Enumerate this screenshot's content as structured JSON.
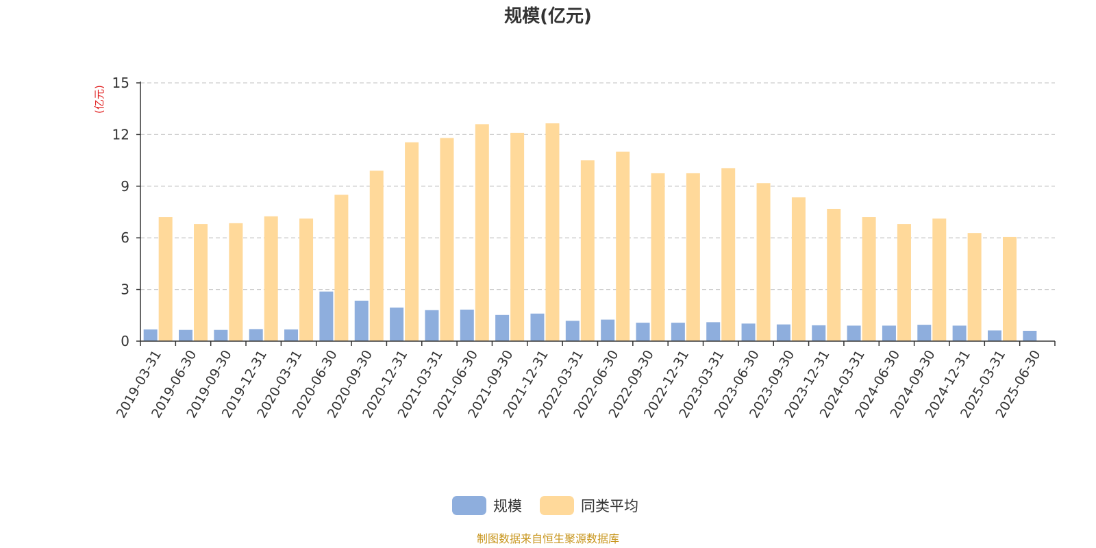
{
  "chart_data": {
    "type": "bar",
    "title": "规模(亿元)",
    "ylabel": "(亿元)",
    "xlabel": "",
    "ylim": [
      0,
      15
    ],
    "yticks": [
      0,
      3,
      6,
      9,
      12,
      15
    ],
    "grid": true,
    "legend_position": "bottom",
    "categories": [
      "2019-03-31",
      "2019-06-30",
      "2019-09-30",
      "2019-12-31",
      "2020-03-31",
      "2020-06-30",
      "2020-09-30",
      "2020-12-31",
      "2021-03-31",
      "2021-06-30",
      "2021-09-30",
      "2021-12-31",
      "2022-03-31",
      "2022-06-30",
      "2022-09-30",
      "2022-12-31",
      "2023-03-31",
      "2023-06-30",
      "2023-09-30",
      "2023-12-31",
      "2024-03-31",
      "2024-06-30",
      "2024-09-30",
      "2024-12-31",
      "2025-03-31",
      "2025-06-30"
    ],
    "series": [
      {
        "name": "规模",
        "color": "#8eaedd",
        "values": [
          0.68,
          0.65,
          0.65,
          0.7,
          0.68,
          2.88,
          2.35,
          1.95,
          1.8,
          1.83,
          1.52,
          1.6,
          1.18,
          1.25,
          1.07,
          1.07,
          1.1,
          1.02,
          0.97,
          0.92,
          0.9,
          0.9,
          0.95,
          0.9,
          0.62,
          0.6
        ]
      },
      {
        "name": "同类平均",
        "color": "#ffd99a",
        "values": [
          7.2,
          6.8,
          6.85,
          7.25,
          7.12,
          8.5,
          9.9,
          11.55,
          11.8,
          12.6,
          12.1,
          12.65,
          10.5,
          11.0,
          9.75,
          9.75,
          10.05,
          9.18,
          8.35,
          7.68,
          7.2,
          6.8,
          7.12,
          6.28,
          6.05,
          null
        ]
      }
    ]
  },
  "footer": "制图数据来自恒生聚源数据库"
}
